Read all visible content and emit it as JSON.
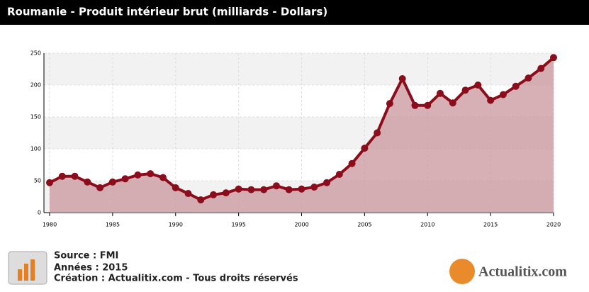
{
  "header": {
    "title": "Roumanie - Produit intérieur brut (milliards - Dollars)"
  },
  "chart_data": {
    "type": "area",
    "x": [
      1980,
      1981,
      1982,
      1983,
      1984,
      1985,
      1986,
      1987,
      1988,
      1989,
      1990,
      1991,
      1992,
      1993,
      1994,
      1995,
      1996,
      1997,
      1998,
      1999,
      2000,
      2001,
      2002,
      2003,
      2004,
      2005,
      2006,
      2007,
      2008,
      2009,
      2010,
      2011,
      2012,
      2013,
      2014,
      2015,
      2016,
      2017,
      2018,
      2019,
      2020
    ],
    "values": [
      47,
      57,
      57,
      48,
      39,
      48,
      53,
      59,
      61,
      55,
      39,
      30,
      20,
      28,
      31,
      37,
      36,
      36,
      42,
      36,
      37,
      40,
      47,
      60,
      77,
      101,
      125,
      171,
      210,
      168,
      168,
      187,
      172,
      192,
      200,
      176,
      185,
      198,
      211,
      226,
      243
    ],
    "color": "#8b0d1c",
    "fill": "#c9959c",
    "xlim": [
      1980,
      2020
    ],
    "xticks": [
      1980,
      1985,
      1990,
      1995,
      2000,
      2005,
      2010,
      2015,
      2020
    ],
    "ylim": [
      0,
      250
    ],
    "yticks": [
      0,
      50,
      100,
      150,
      200,
      250
    ],
    "grid": true
  },
  "footer": {
    "source": "Source : FMI",
    "years": "Années : 2015",
    "creation": "Création : Actualitix.com - Tous droits réservés",
    "logo": "Actualitix.com"
  }
}
